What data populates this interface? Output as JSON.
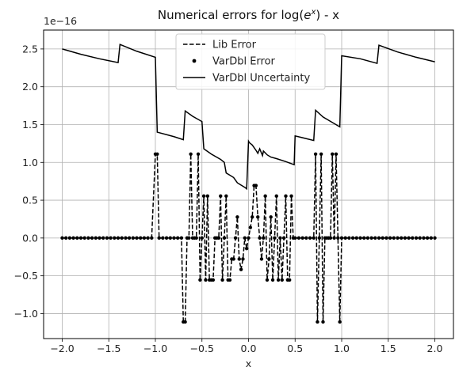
{
  "chart_data": {
    "type": "line",
    "title": "Numerical errors for log(e^x) - x",
    "title_main": "Numerical errors for log(",
    "title_base": "e",
    "title_sup": "x",
    "title_tail": ") - x",
    "xlabel": "x",
    "ylabel": "",
    "offset_text": "1e−16",
    "xlim": [
      -2.2,
      2.2
    ],
    "ylim": [
      -1.33,
      2.75
    ],
    "xticks": [
      -2.0,
      -1.5,
      -1.0,
      -0.5,
      0.0,
      0.5,
      1.0,
      1.5,
      2.0
    ],
    "xtick_labels": [
      "−2.0",
      "−1.5",
      "−1.0",
      "−0.5",
      "0.0",
      "0.5",
      "1.0",
      "1.5",
      "2.0"
    ],
    "yticks": [
      -1.0,
      -0.5,
      0.0,
      0.5,
      1.0,
      1.5,
      2.0,
      2.5
    ],
    "ytick_labels": [
      "−1.0",
      "−0.5",
      "0.0",
      "0.5",
      "1.0",
      "1.5",
      "2.0",
      "2.5"
    ],
    "grid": true,
    "legend_position": "top-center",
    "series": [
      {
        "name": "Lib Error",
        "style": "dashed",
        "color": "#000000",
        "x": [
          -2.0,
          -1.96,
          -1.92,
          -1.88,
          -1.84,
          -1.8,
          -1.76,
          -1.72,
          -1.68,
          -1.64,
          -1.6,
          -1.56,
          -1.52,
          -1.48,
          -1.44,
          -1.4,
          -1.36,
          -1.32,
          -1.28,
          -1.24,
          -1.2,
          -1.16,
          -1.12,
          -1.08,
          -1.04,
          -1.0,
          -0.98,
          -0.96,
          -0.92,
          -0.88,
          -0.84,
          -0.8,
          -0.76,
          -0.72,
          -0.7,
          -0.68,
          -0.66,
          -0.64,
          -0.62,
          -0.6,
          -0.58,
          -0.56,
          -0.54,
          -0.52,
          -0.5,
          -0.48,
          -0.46,
          -0.44,
          -0.42,
          -0.4,
          -0.38,
          -0.36,
          -0.34,
          -0.32,
          -0.3,
          -0.28,
          -0.26,
          -0.24,
          -0.22,
          -0.2,
          -0.18,
          -0.16,
          -0.14,
          -0.12,
          -0.1,
          -0.08,
          -0.06,
          -0.04,
          -0.02,
          0.0,
          0.02,
          0.04,
          0.06,
          0.08,
          0.1,
          0.12,
          0.14,
          0.16,
          0.18,
          0.2,
          0.22,
          0.24,
          0.26,
          0.28,
          0.3,
          0.32,
          0.34,
          0.36,
          0.38,
          0.4,
          0.42,
          0.44,
          0.46,
          0.48,
          0.5,
          0.54,
          0.58,
          0.62,
          0.66,
          0.7,
          0.72,
          0.74,
          0.76,
          0.78,
          0.8,
          0.82,
          0.84,
          0.86,
          0.88,
          0.9,
          0.92,
          0.94,
          0.96,
          0.98,
          1.0,
          1.04,
          1.08,
          1.12,
          1.16,
          1.2,
          1.24,
          1.28,
          1.32,
          1.36,
          1.4,
          1.44,
          1.48,
          1.52,
          1.56,
          1.6,
          1.64,
          1.68,
          1.72,
          1.76,
          1.8,
          1.84,
          1.88,
          1.92,
          1.96,
          2.0
        ],
        "y": [
          0,
          0,
          0,
          0,
          0,
          0,
          0,
          0,
          0,
          0,
          0,
          0,
          0,
          0,
          0,
          0,
          0,
          0,
          0,
          0,
          0,
          0,
          0,
          0,
          0,
          1.11,
          1.11,
          0,
          0,
          0,
          0,
          0,
          0,
          0,
          -1.11,
          -1.11,
          0,
          0,
          1.11,
          0,
          0,
          0,
          1.11,
          -0.555,
          0,
          0.555,
          -0.555,
          0.555,
          -0.555,
          -0.555,
          -0.555,
          0,
          0,
          0,
          0.555,
          -0.555,
          0,
          0.555,
          -0.555,
          -0.555,
          -0.278,
          -0.278,
          0.0,
          0.278,
          -0.278,
          -0.416,
          -0.278,
          0,
          -0.139,
          0.0,
          0.139,
          0.278,
          0.694,
          0.694,
          0.278,
          0,
          -0.278,
          0,
          0.555,
          -0.555,
          -0.278,
          0.278,
          -0.555,
          0,
          0.555,
          -0.555,
          0,
          -0.555,
          0,
          0.555,
          -0.555,
          -0.555,
          0.555,
          0,
          0,
          0,
          0,
          0,
          0,
          0,
          1.11,
          -1.11,
          0,
          1.11,
          -1.11,
          0,
          0,
          0,
          0,
          1.11,
          0,
          1.11,
          0,
          -1.11,
          0,
          0,
          0,
          0,
          0,
          0,
          0,
          0,
          0,
          0,
          0,
          0,
          0,
          0,
          0,
          0,
          0,
          0,
          0,
          0,
          0,
          0,
          0,
          0,
          0,
          0
        ]
      },
      {
        "name": "VarDbl Error",
        "style": "points",
        "color": "#000000",
        "same_as": "Lib Error"
      },
      {
        "name": "VarDbl Uncertainty",
        "style": "solid",
        "color": "#000000",
        "x": [
          -2.0,
          -1.8,
          -1.6,
          -1.4,
          -1.38,
          -1.2,
          -1.0,
          -0.98,
          -0.8,
          -0.7,
          -0.68,
          -0.6,
          -0.5,
          -0.48,
          -0.4,
          -0.3,
          -0.26,
          -0.24,
          -0.2,
          -0.16,
          -0.12,
          -0.08,
          -0.04,
          -0.02,
          0.0,
          0.01,
          0.04,
          0.08,
          0.1,
          0.12,
          0.15,
          0.16,
          0.2,
          0.24,
          0.3,
          0.4,
          0.49,
          0.5,
          0.7,
          0.72,
          0.8,
          0.98,
          1.0,
          1.2,
          1.38,
          1.4,
          1.6,
          1.8,
          2.0
        ],
        "y": [
          2.5,
          2.43,
          2.37,
          2.32,
          2.56,
          2.47,
          2.39,
          1.4,
          1.34,
          1.3,
          1.68,
          1.61,
          1.54,
          1.18,
          1.11,
          1.04,
          1.0,
          0.86,
          0.83,
          0.8,
          0.73,
          0.7,
          0.67,
          0.65,
          1.28,
          1.26,
          1.23,
          1.16,
          1.12,
          1.18,
          1.09,
          1.15,
          1.1,
          1.07,
          1.05,
          1.01,
          0.97,
          1.35,
          1.29,
          1.69,
          1.6,
          1.47,
          2.41,
          2.37,
          2.31,
          2.55,
          2.46,
          2.39,
          2.33
        ]
      }
    ]
  }
}
